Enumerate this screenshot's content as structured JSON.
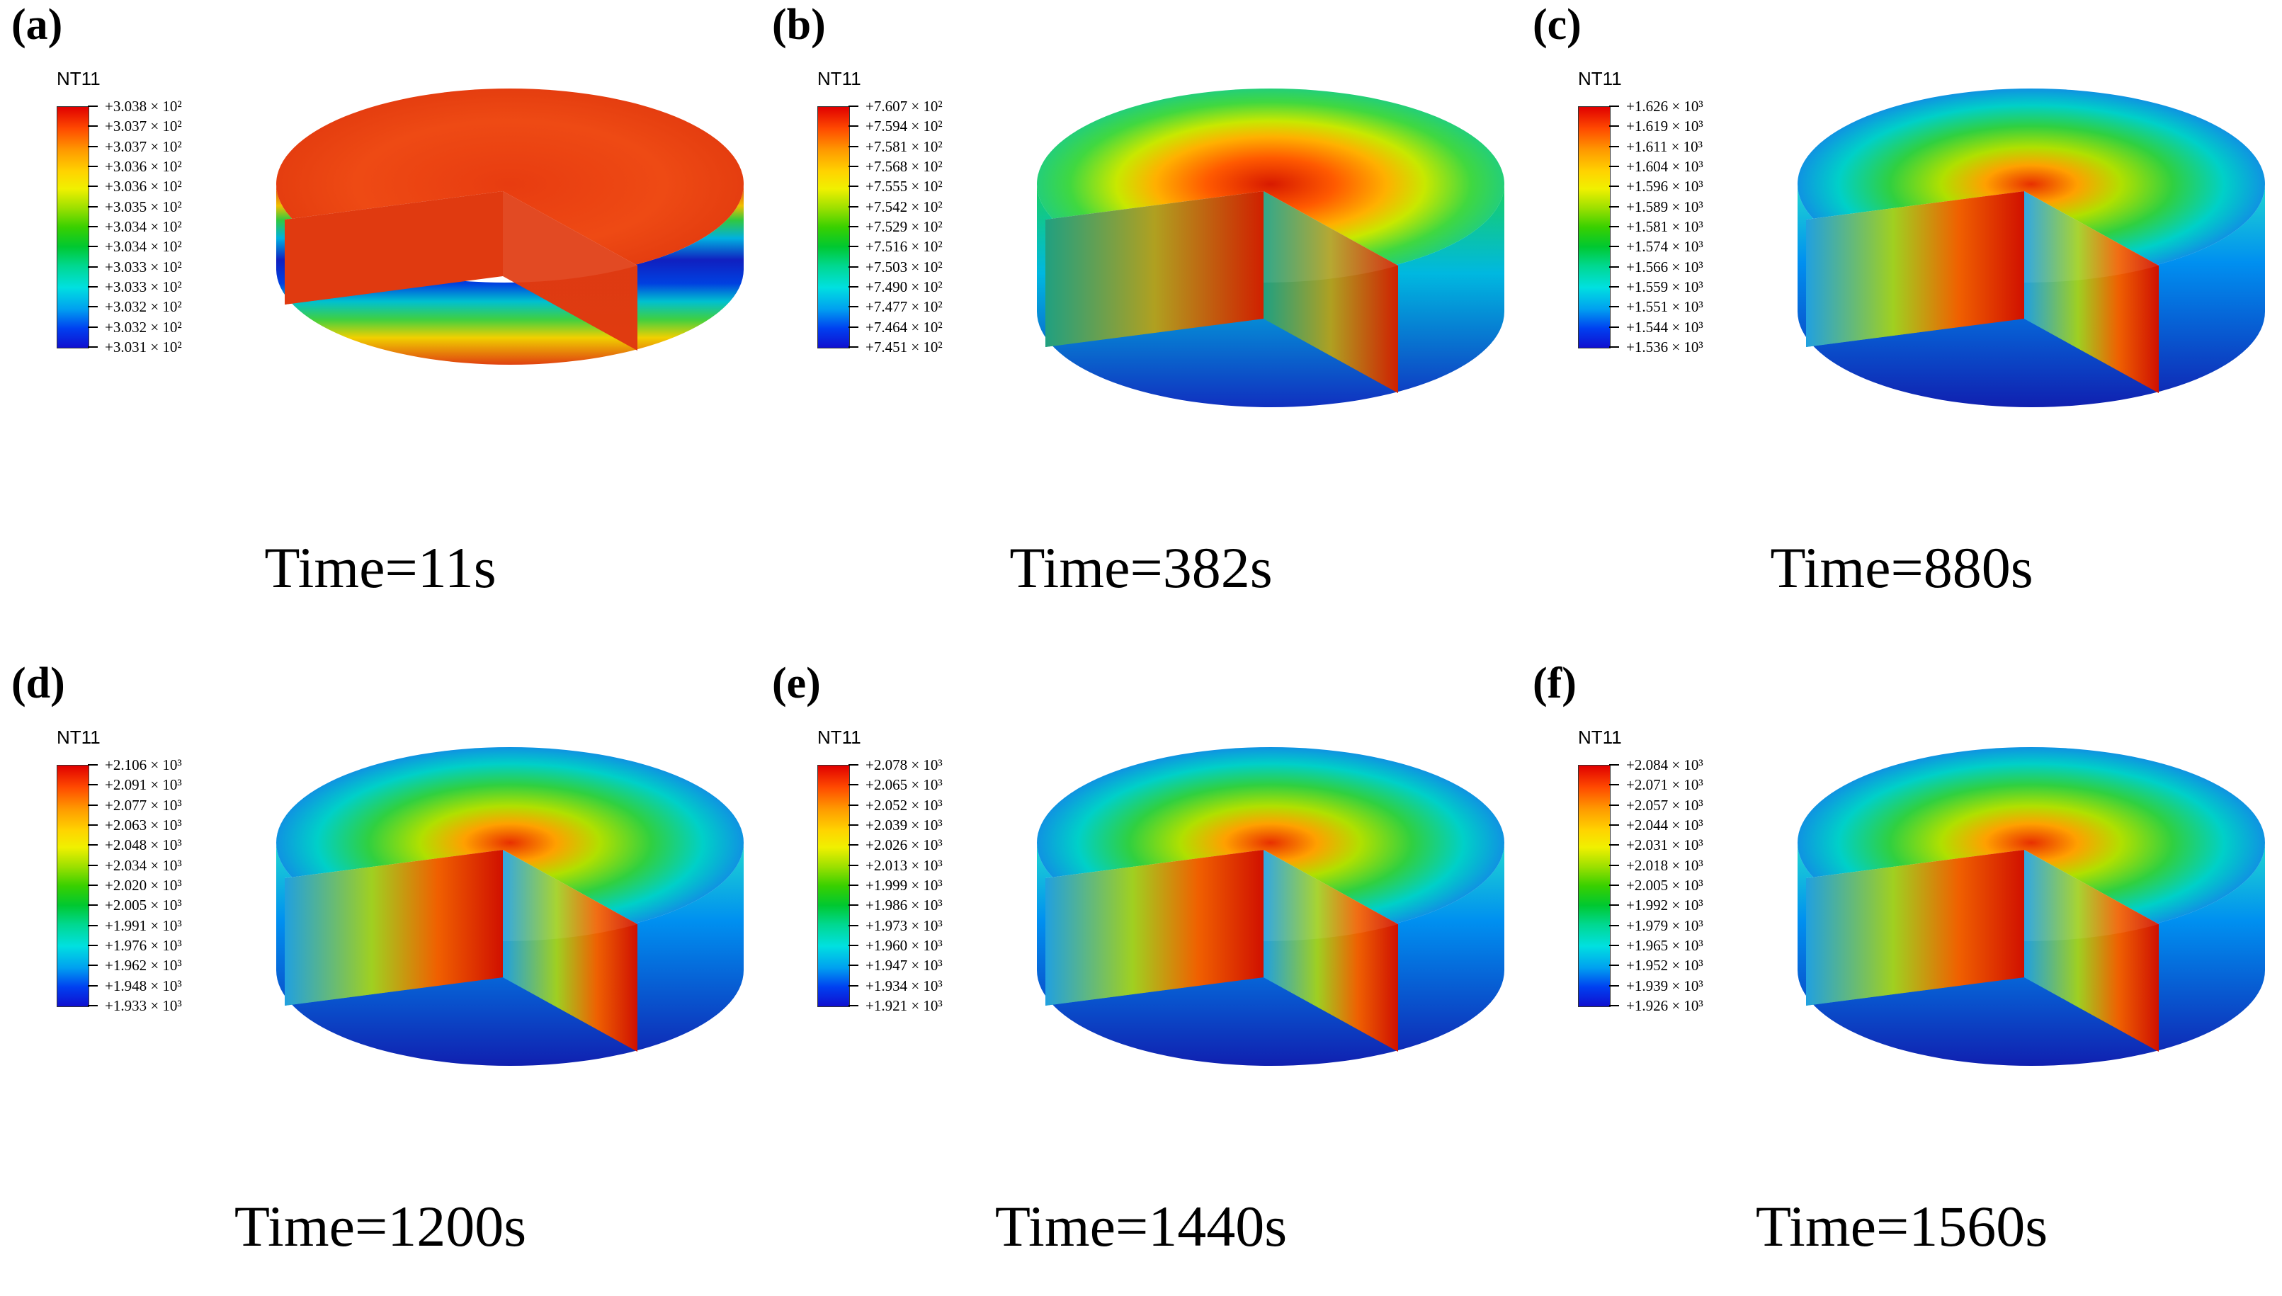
{
  "figure": {
    "panels": [
      {
        "label": "(a)",
        "legend_title": "NT11",
        "legend_values": [
          "+3.038 × 10²",
          "+3.037 × 10²",
          "+3.037 × 10²",
          "+3.036 × 10²",
          "+3.036 × 10²",
          "+3.035 × 10²",
          "+3.034 × 10²",
          "+3.034 × 10²",
          "+3.033 × 10²",
          "+3.033 × 10²",
          "+3.032 × 10²",
          "+3.032 × 10²",
          "+3.031 × 10²"
        ],
        "caption": "Time=11s",
        "state": "uniform"
      },
      {
        "label": "(b)",
        "legend_title": "NT11",
        "legend_values": [
          "+7.607 × 10²",
          "+7.594 × 10²",
          "+7.581 × 10²",
          "+7.568 × 10²",
          "+7.555 × 10²",
          "+7.542 × 10²",
          "+7.529 × 10²",
          "+7.516 × 10²",
          "+7.503 × 10²",
          "+7.490 × 10²",
          "+7.477 × 10²",
          "+7.464 × 10²",
          "+7.451 × 10²"
        ],
        "caption": "Time=382s",
        "state": "hot-top"
      },
      {
        "label": "(c)",
        "legend_title": "NT11",
        "legend_values": [
          "+1.626 × 10³",
          "+1.619 × 10³",
          "+1.611 × 10³",
          "+1.604 × 10³",
          "+1.596 × 10³",
          "+1.589 × 10³",
          "+1.581 × 10³",
          "+1.574 × 10³",
          "+1.566 × 10³",
          "+1.559 × 10³",
          "+1.551 × 10³",
          "+1.544 × 10³",
          "+1.536 × 10³"
        ],
        "caption": "Time=880s",
        "state": "core-hot"
      },
      {
        "label": "(d)",
        "legend_title": "NT11",
        "legend_values": [
          "+2.106 × 10³",
          "+2.091 × 10³",
          "+2.077 × 10³",
          "+2.063 × 10³",
          "+2.048 × 10³",
          "+2.034 × 10³",
          "+2.020 × 10³",
          "+2.005 × 10³",
          "+1.991 × 10³",
          "+1.976 × 10³",
          "+1.962 × 10³",
          "+1.948 × 10³",
          "+1.933 × 10³"
        ],
        "caption": "Time=1200s",
        "state": "core-hot"
      },
      {
        "label": "(e)",
        "legend_title": "NT11",
        "legend_values": [
          "+2.078 × 10³",
          "+2.065 × 10³",
          "+2.052 × 10³",
          "+2.039 × 10³",
          "+2.026 × 10³",
          "+2.013 × 10³",
          "+1.999 × 10³",
          "+1.986 × 10³",
          "+1.973 × 10³",
          "+1.960 × 10³",
          "+1.947 × 10³",
          "+1.934 × 10³",
          "+1.921 × 10³"
        ],
        "caption": "Time=1440s",
        "state": "core-hot"
      },
      {
        "label": "(f)",
        "legend_title": "NT11",
        "legend_values": [
          "+2.084 × 10³",
          "+2.071 × 10³",
          "+2.057 × 10³",
          "+2.044 × 10³",
          "+2.031 × 10³",
          "+2.018 × 10³",
          "+2.005 × 10³",
          "+1.992 × 10³",
          "+1.979 × 10³",
          "+1.965 × 10³",
          "+1.952 × 10³",
          "+1.939 × 10³",
          "+1.926 × 10³"
        ],
        "caption": "Time=1560s",
        "state": "core-hot"
      }
    ]
  }
}
